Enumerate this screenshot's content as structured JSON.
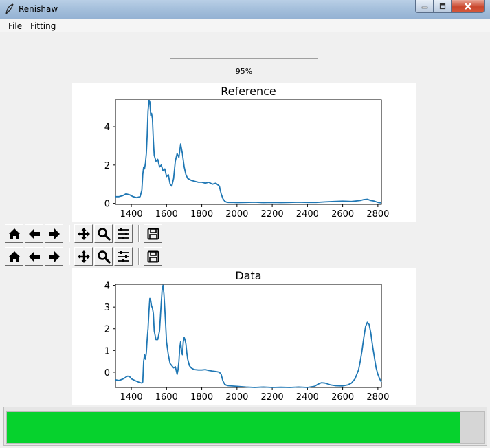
{
  "window": {
    "title": "Renishaw"
  },
  "menu": {
    "items": [
      "File",
      "Fitting"
    ]
  },
  "percent_label": "95%",
  "progress": {
    "value": 0.95,
    "color": "#06d22d"
  },
  "toolbar": {
    "buttons": [
      "home-icon",
      "back-arrow-icon",
      "forward-arrow-icon",
      "pan-icon",
      "zoom-icon",
      "configure-subplots-icon",
      "save-icon"
    ]
  },
  "chart_data": [
    {
      "type": "line",
      "title": "Reference",
      "xlabel": "",
      "ylabel": "",
      "xlim": [
        1310,
        2820
      ],
      "ylim": [
        -0.05,
        5.4
      ],
      "xticks": [
        1400,
        1600,
        1800,
        2000,
        2200,
        2400,
        2600,
        2800
      ],
      "yticks": [
        0,
        2,
        4
      ],
      "grid": false,
      "color": "#1f77b4",
      "series": [
        {
          "x": [
            1310,
            1330,
            1350,
            1370,
            1390,
            1410,
            1430,
            1450,
            1460,
            1465,
            1470,
            1475,
            1480,
            1485,
            1490,
            1495,
            1500,
            1505,
            1510,
            1515,
            1520,
            1525,
            1530,
            1540,
            1550,
            1560,
            1570,
            1580,
            1590,
            1600,
            1610,
            1620,
            1630,
            1640,
            1650,
            1660,
            1670,
            1680,
            1690,
            1700,
            1710,
            1720,
            1740,
            1760,
            1780,
            1800,
            1820,
            1840,
            1860,
            1880,
            1900,
            1910,
            1920,
            1930,
            1940,
            1950,
            1980,
            2000,
            2050,
            2100,
            2150,
            2200,
            2250,
            2300,
            2350,
            2400,
            2450,
            2500,
            2550,
            2600,
            2650,
            2700,
            2720,
            2740,
            2760,
            2780,
            2800,
            2820
          ],
          "y": [
            0.35,
            0.35,
            0.4,
            0.5,
            0.45,
            0.35,
            0.3,
            0.35,
            0.7,
            1.5,
            1.9,
            1.8,
            2.1,
            2.6,
            3.5,
            4.8,
            5.35,
            5.3,
            4.6,
            4.7,
            4.4,
            3.3,
            2.5,
            2.2,
            2.3,
            1.9,
            2.0,
            1.7,
            1.8,
            1.4,
            1.5,
            1.0,
            0.9,
            1.3,
            2.2,
            2.6,
            2.4,
            3.1,
            2.6,
            1.9,
            1.5,
            1.3,
            1.2,
            1.15,
            1.1,
            1.1,
            1.05,
            1.1,
            1.0,
            1.05,
            0.9,
            0.5,
            0.25,
            0.12,
            0.07,
            0.05,
            0.05,
            0.04,
            0.05,
            0.06,
            0.04,
            0.05,
            0.04,
            0.05,
            0.06,
            0.05,
            0.05,
            0.08,
            0.1,
            0.12,
            0.1,
            0.15,
            0.2,
            0.22,
            0.15,
            0.12,
            0.05,
            0.02
          ]
        }
      ]
    },
    {
      "type": "line",
      "title": "Data",
      "xlabel": "",
      "ylabel": "",
      "xlim": [
        1310,
        2820
      ],
      "ylim": [
        -0.7,
        4.05
      ],
      "xticks": [
        1400,
        1600,
        1800,
        2000,
        2200,
        2400,
        2600,
        2800
      ],
      "yticks": [
        0,
        1,
        2,
        3,
        4
      ],
      "grid": false,
      "color": "#1f77b4",
      "series": [
        {
          "x": [
            1310,
            1330,
            1350,
            1360,
            1370,
            1380,
            1390,
            1400,
            1420,
            1440,
            1460,
            1465,
            1470,
            1475,
            1480,
            1485,
            1490,
            1495,
            1500,
            1505,
            1510,
            1515,
            1520,
            1525,
            1530,
            1540,
            1550,
            1560,
            1570,
            1575,
            1580,
            1585,
            1590,
            1595,
            1600,
            1610,
            1620,
            1630,
            1640,
            1650,
            1660,
            1665,
            1670,
            1675,
            1680,
            1685,
            1690,
            1695,
            1700,
            1705,
            1710,
            1715,
            1720,
            1730,
            1740,
            1750,
            1760,
            1780,
            1800,
            1820,
            1840,
            1860,
            1880,
            1900,
            1910,
            1920,
            1930,
            1940,
            1950,
            2000,
            2050,
            2100,
            2150,
            2200,
            2250,
            2300,
            2350,
            2400,
            2440,
            2460,
            2480,
            2500,
            2530,
            2560,
            2600,
            2630,
            2650,
            2670,
            2690,
            2700,
            2710,
            2720,
            2730,
            2740,
            2750,
            2760,
            2770,
            2780,
            2790,
            2800,
            2810,
            2820
          ],
          "y": [
            -0.35,
            -0.38,
            -0.32,
            -0.28,
            -0.22,
            -0.18,
            -0.2,
            -0.3,
            -0.38,
            -0.45,
            -0.5,
            -0.45,
            0.5,
            0.8,
            0.6,
            0.9,
            1.5,
            2.0,
            2.8,
            3.4,
            3.3,
            3.05,
            2.95,
            2.7,
            1.9,
            1.5,
            1.5,
            1.9,
            3.2,
            3.8,
            4.0,
            3.6,
            2.9,
            2.2,
            1.4,
            0.8,
            0.4,
            0.3,
            0.2,
            0.25,
            -0.1,
            0.1,
            0.5,
            1.1,
            1.4,
            1.0,
            0.8,
            1.4,
            1.6,
            1.5,
            1.3,
            0.9,
            0.6,
            0.3,
            0.2,
            0.15,
            0.12,
            0.1,
            0.1,
            0.12,
            0.08,
            0.05,
            0.03,
            0.0,
            -0.1,
            -0.4,
            -0.55,
            -0.6,
            -0.62,
            -0.65,
            -0.68,
            -0.7,
            -0.68,
            -0.7,
            -0.69,
            -0.7,
            -0.68,
            -0.7,
            -0.65,
            -0.55,
            -0.48,
            -0.5,
            -0.58,
            -0.62,
            -0.63,
            -0.58,
            -0.5,
            -0.3,
            0.1,
            0.5,
            1.0,
            1.6,
            2.1,
            2.3,
            2.2,
            1.8,
            1.2,
            0.7,
            0.2,
            -0.1,
            -0.3,
            -0.45
          ]
        }
      ]
    }
  ]
}
